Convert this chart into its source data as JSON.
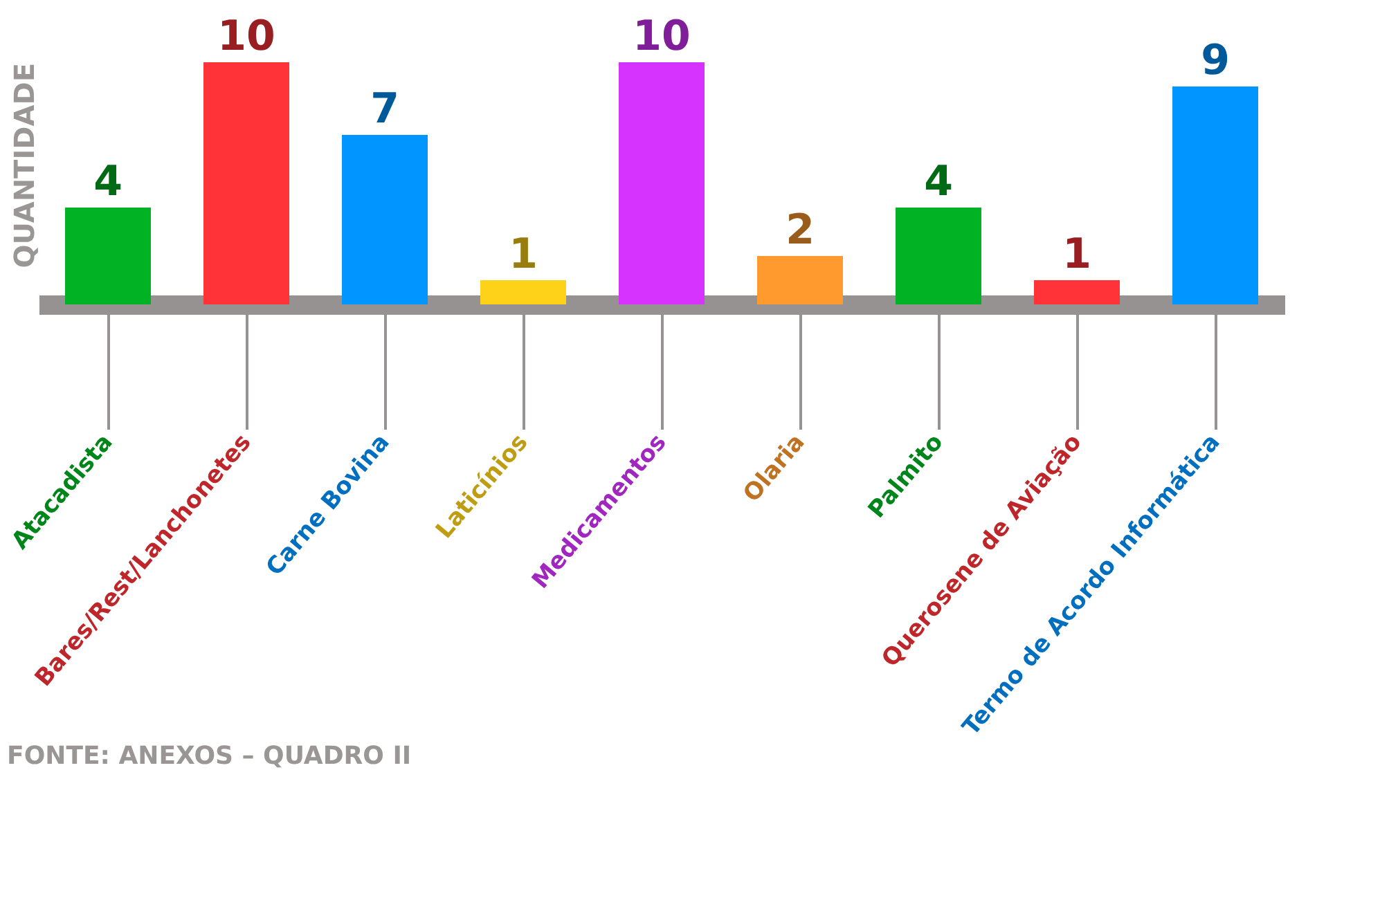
{
  "chart_data": {
    "type": "bar",
    "ylabel": "QUANTIDADE",
    "categories": [
      "Atacadista",
      "Bares/Rest/Lanchonetes",
      "Carne Bovina",
      "Laticínios",
      "Medicamentos",
      "Olaria",
      "Palmito",
      "Querosene de Aviação",
      "Termo de Acordo Informática"
    ],
    "values": [
      4,
      10,
      7,
      1,
      10,
      2,
      4,
      1,
      9
    ],
    "colors": [
      "#00b224",
      "#ff3338",
      "#0095ff",
      "#ffd21a",
      "#d633ff",
      "#ff9a2e",
      "#00b224",
      "#ff3338",
      "#0095ff"
    ],
    "data_labels": true,
    "tick_labels": "x",
    "grid": false,
    "annotations": [
      "FONTE: ANEXOS – QUADRO II"
    ]
  }
}
